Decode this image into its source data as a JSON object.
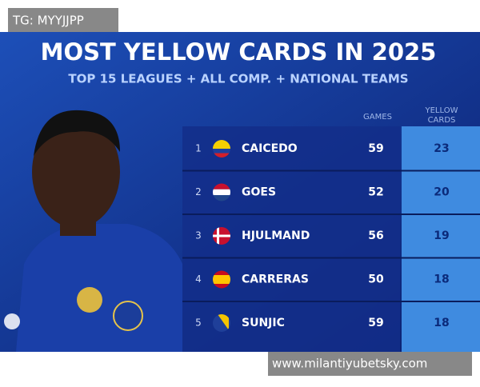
{
  "watermark_top": "TG: MYYJJPP",
  "watermark_bottom": "www.milantiyubetsky.com",
  "header": {
    "title": "MOST YELLOW CARDS IN 2025",
    "subtitle": "TOP 15 LEAGUES + ALL COMP. + NATIONAL TEAMS"
  },
  "table": {
    "columns": [
      "GAMES",
      "YELLOW CARDS"
    ],
    "rows": [
      {
        "rank": 1,
        "name": "CAICEDO",
        "games": 59,
        "cards": 23
      },
      {
        "rank": 2,
        "name": "GOES",
        "games": 52,
        "cards": 20
      },
      {
        "rank": 3,
        "name": "HJULMAND",
        "games": 56,
        "cards": 19
      },
      {
        "rank": 4,
        "name": "CARRERAS",
        "games": 50,
        "cards": 18
      },
      {
        "rank": 5,
        "name": "SUNJIC",
        "games": 59,
        "cards": 18
      }
    ]
  }
}
